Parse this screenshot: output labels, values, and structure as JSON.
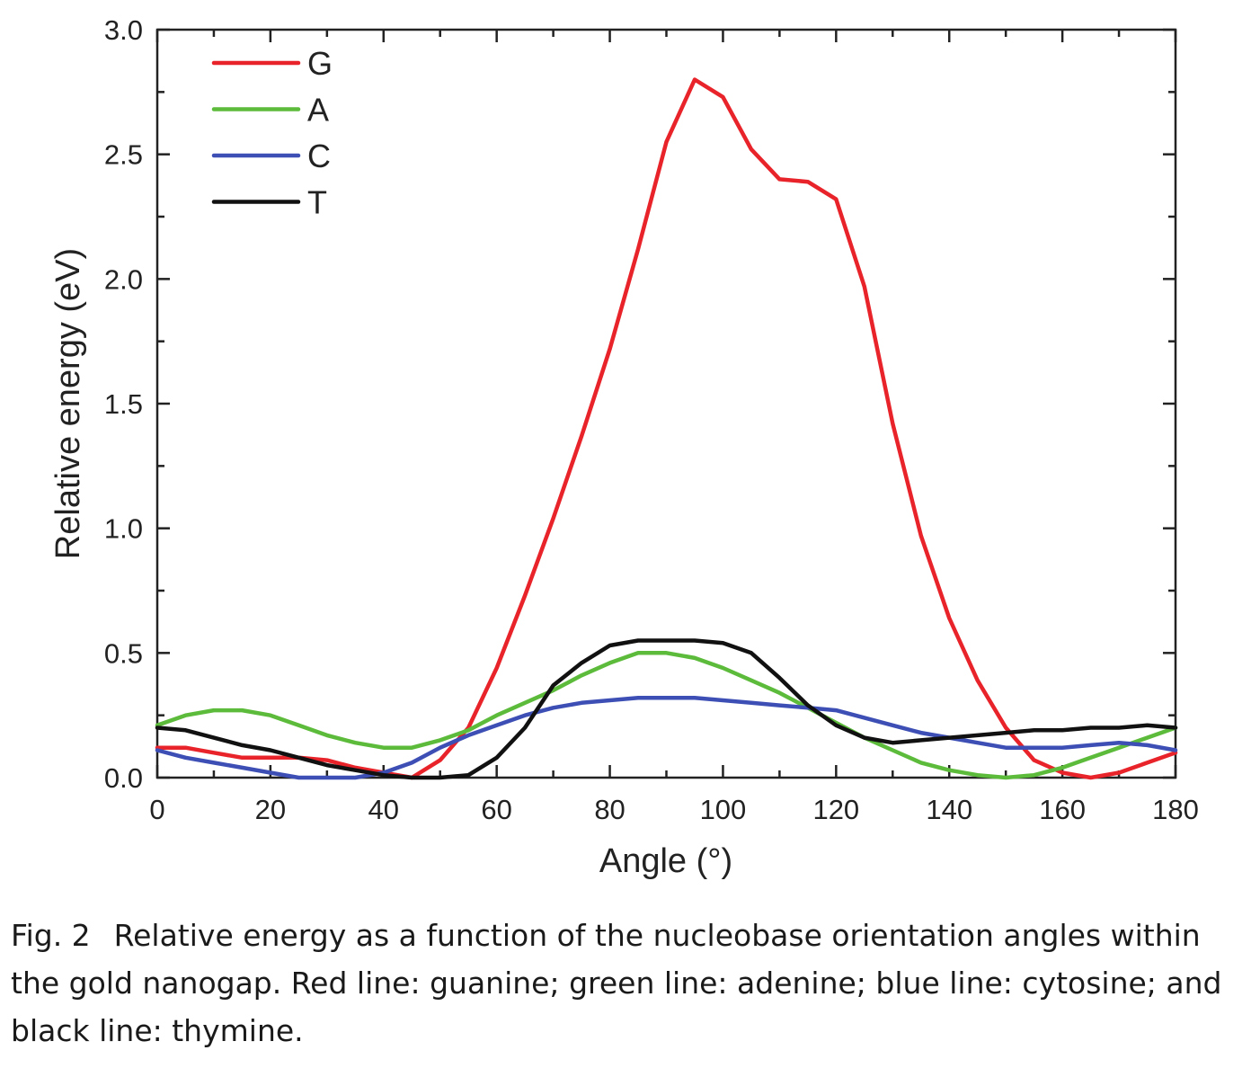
{
  "chart_data": {
    "type": "line",
    "title": "",
    "xlabel": "Angle (°)",
    "ylabel": "Relative energy (eV)",
    "xlim": [
      0,
      180
    ],
    "ylim": [
      0,
      3.0
    ],
    "xticks": [
      "0",
      "20",
      "40",
      "60",
      "80",
      "100",
      "120",
      "140",
      "160",
      "180"
    ],
    "yticks": [
      "0.0",
      "0.5",
      "1.0",
      "1.5",
      "2.0",
      "2.5",
      "3.0"
    ],
    "grid": false,
    "legend_position": "top-left",
    "series": [
      {
        "name": "G",
        "color": "#e8242a",
        "x": [
          0,
          5,
          10,
          15,
          20,
          25,
          30,
          35,
          40,
          45,
          50,
          55,
          60,
          65,
          70,
          75,
          80,
          85,
          90,
          95,
          100,
          105,
          110,
          115,
          120,
          125,
          130,
          135,
          140,
          145,
          150,
          155,
          160,
          165,
          170,
          175,
          180
        ],
        "values": [
          0.12,
          0.12,
          0.1,
          0.08,
          0.08,
          0.08,
          0.07,
          0.04,
          0.02,
          0.0,
          0.07,
          0.2,
          0.44,
          0.73,
          1.04,
          1.37,
          1.72,
          2.12,
          2.55,
          2.8,
          2.73,
          2.52,
          2.4,
          2.39,
          2.32,
          1.97,
          1.42,
          0.97,
          0.64,
          0.39,
          0.2,
          0.07,
          0.02,
          0.0,
          0.02,
          0.06,
          0.1
        ]
      },
      {
        "name": "A",
        "color": "#5cbb3a",
        "x": [
          0,
          5,
          10,
          15,
          20,
          25,
          30,
          35,
          40,
          45,
          50,
          55,
          60,
          65,
          70,
          75,
          80,
          85,
          90,
          95,
          100,
          105,
          110,
          115,
          120,
          125,
          130,
          135,
          140,
          145,
          150,
          155,
          160,
          165,
          170,
          175,
          180
        ],
        "values": [
          0.21,
          0.25,
          0.27,
          0.27,
          0.25,
          0.21,
          0.17,
          0.14,
          0.12,
          0.12,
          0.15,
          0.19,
          0.25,
          0.3,
          0.35,
          0.41,
          0.46,
          0.5,
          0.5,
          0.48,
          0.44,
          0.39,
          0.34,
          0.28,
          0.22,
          0.16,
          0.11,
          0.06,
          0.03,
          0.01,
          0.0,
          0.01,
          0.04,
          0.08,
          0.12,
          0.16,
          0.2
        ]
      },
      {
        "name": "C",
        "color": "#3d4fb5",
        "x": [
          0,
          5,
          10,
          15,
          20,
          25,
          30,
          35,
          40,
          45,
          50,
          55,
          60,
          65,
          70,
          75,
          80,
          85,
          90,
          95,
          100,
          105,
          110,
          115,
          120,
          125,
          130,
          135,
          140,
          145,
          150,
          155,
          160,
          165,
          170,
          175,
          180
        ],
        "values": [
          0.11,
          0.08,
          0.06,
          0.04,
          0.02,
          0.0,
          0.0,
          0.0,
          0.02,
          0.06,
          0.12,
          0.17,
          0.21,
          0.25,
          0.28,
          0.3,
          0.31,
          0.32,
          0.32,
          0.32,
          0.31,
          0.3,
          0.29,
          0.28,
          0.27,
          0.24,
          0.21,
          0.18,
          0.16,
          0.14,
          0.12,
          0.12,
          0.12,
          0.13,
          0.14,
          0.13,
          0.11
        ]
      },
      {
        "name": "T",
        "color": "#111111",
        "x": [
          0,
          5,
          10,
          15,
          20,
          25,
          30,
          35,
          40,
          45,
          50,
          55,
          60,
          65,
          70,
          75,
          80,
          85,
          90,
          95,
          100,
          105,
          110,
          115,
          120,
          125,
          130,
          135,
          140,
          145,
          150,
          155,
          160,
          165,
          170,
          175,
          180
        ],
        "values": [
          0.2,
          0.19,
          0.16,
          0.13,
          0.11,
          0.08,
          0.05,
          0.03,
          0.01,
          0.0,
          0.0,
          0.01,
          0.08,
          0.2,
          0.37,
          0.46,
          0.53,
          0.55,
          0.55,
          0.55,
          0.54,
          0.5,
          0.4,
          0.29,
          0.21,
          0.16,
          0.14,
          0.15,
          0.16,
          0.17,
          0.18,
          0.19,
          0.19,
          0.2,
          0.2,
          0.21,
          0.2
        ]
      }
    ]
  },
  "caption": {
    "label": "Fig. 2",
    "text": "Relative energy as a function of the nucleobase orientation angles within the gold nanogap. Red line: guanine; green line: adenine; blue line: cytosine; and black line: thymine."
  }
}
